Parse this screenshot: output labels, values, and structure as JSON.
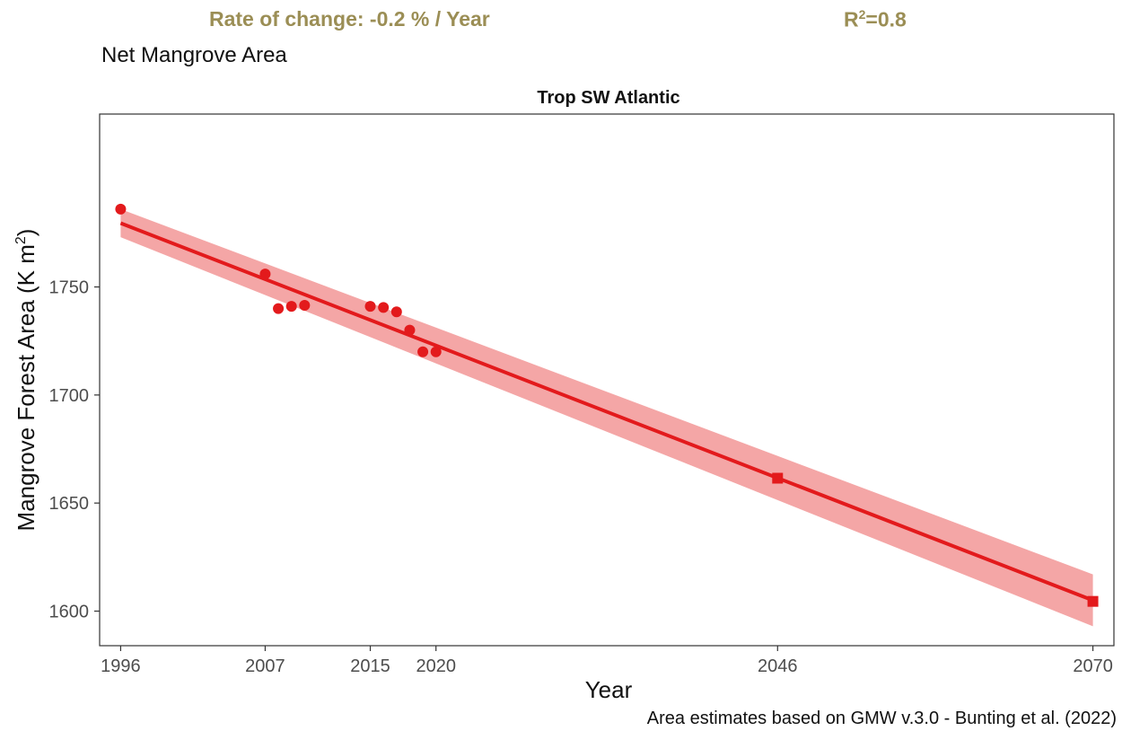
{
  "header": {
    "rate_text": "Rate of change: -0.2 % / Year",
    "r2_prefix": "R",
    "r2_sup": "2",
    "r2_value": "=0.8",
    "subtitle": "Net Mangrove Area",
    "accent_color": "#9b8e55"
  },
  "caption": "Area estimates based on GMW v.3.0 - Bunting et al. (2022)",
  "chart_data": {
    "type": "scatter",
    "title": "Trop SW Atlantic",
    "xlabel": "Year",
    "ylabel": "Mangrove Forest Area (K m",
    "ylabel_sup": "2",
    "ylabel_close": ")",
    "xlim": [
      1994.4,
      2071.6
    ],
    "ylim": [
      1584,
      1830
    ],
    "x_ticks": [
      1996,
      2007,
      2015,
      2020,
      2046,
      2070
    ],
    "y_ticks": [
      1600,
      1650,
      1700,
      1750
    ],
    "grid": false,
    "colors": {
      "point": "#e31a1c",
      "line": "#e31a1c",
      "ribbon": "#f08080"
    },
    "series": [
      {
        "marker": "circle",
        "x": [
          1996,
          2007,
          2008,
          2009,
          2010,
          2015,
          2016,
          2017,
          2018,
          2019,
          2020
        ],
        "y": [
          1786,
          1756,
          1740,
          1741,
          1741.5,
          1741,
          1740.5,
          1738.5,
          1730,
          1720,
          1720
        ]
      },
      {
        "marker": "square",
        "x": [
          2046,
          2070
        ],
        "y": [
          1661.5,
          1604.5
        ]
      }
    ],
    "fit": {
      "x": [
        1996,
        2070
      ],
      "y": [
        1779.5,
        1605
      ],
      "ci_lower": [
        1773,
        1593
      ],
      "ci_upper": [
        1786,
        1617
      ]
    }
  }
}
